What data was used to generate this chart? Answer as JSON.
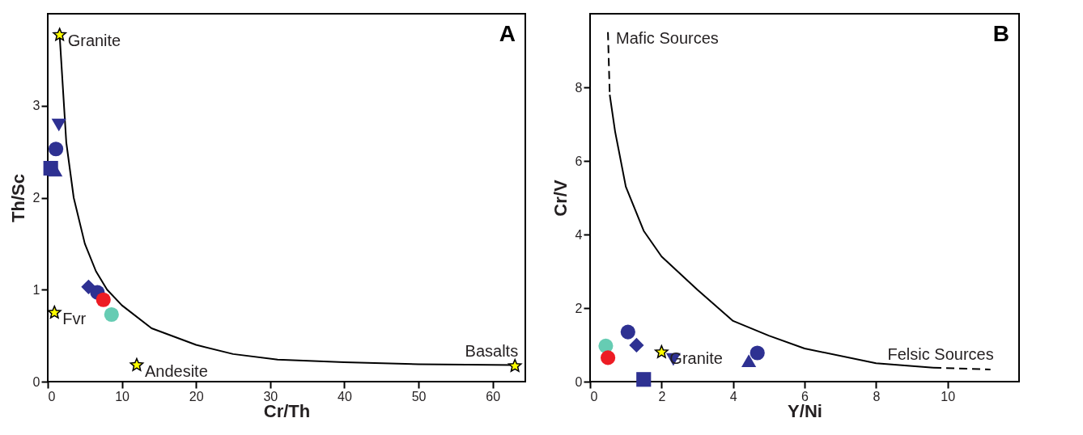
{
  "chart_data": [
    {
      "type": "scatter",
      "xlabel": "Cr/Th",
      "ylabel": "Th/Sc",
      "xlim": [
        0,
        64.4
      ],
      "ylim": [
        0,
        4
      ],
      "xticks": [
        0,
        10,
        20,
        30,
        40,
        50,
        60
      ],
      "yticks": [
        0,
        1,
        2,
        3
      ],
      "grid": false,
      "series": [
        {
          "type": "line",
          "line_style": "solid",
          "color": "#000000",
          "x": [
            1.6,
            2.5,
            3.5,
            5,
            6.5,
            8,
            10,
            14,
            20,
            25,
            31,
            40,
            50,
            63
          ],
          "values": [
            3.77,
            2.6,
            2.0,
            1.5,
            1.2,
            1.0,
            0.83,
            0.58,
            0.4,
            0.3,
            0.24,
            0.21,
            0.19,
            0.18
          ]
        },
        {
          "marker": "star",
          "color": "#ffff00",
          "x": [
            1.6,
            0.9,
            12,
            63
          ],
          "values": [
            3.77,
            0.75,
            0.18,
            0.17
          ]
        },
        {
          "marker": "triangle-down",
          "color": "#2e3192",
          "x": [
            1.5
          ],
          "values": [
            2.79
          ]
        },
        {
          "marker": "circle",
          "color": "#2e3192",
          "x": [
            1.1,
            6.7
          ],
          "values": [
            2.53,
            0.97
          ]
        },
        {
          "marker": "square",
          "color": "#2e3192",
          "x": [
            0.4
          ],
          "values": [
            2.32
          ]
        },
        {
          "marker": "triangle",
          "color": "#2e3192",
          "x": [
            1.0
          ],
          "values": [
            2.3
          ]
        },
        {
          "marker": "diamond",
          "color": "#2e3192",
          "x": [
            5.5
          ],
          "values": [
            1.03
          ]
        },
        {
          "marker": "circle",
          "color": "#ed1c24",
          "x": [
            7.5
          ],
          "values": [
            0.89
          ]
        },
        {
          "marker": "circle",
          "color": "#66ccb3",
          "x": [
            8.6
          ],
          "values": [
            0.73
          ]
        }
      ],
      "annotations": [
        "A",
        {
          "text": "Granite",
          "x": 1.6,
          "y": 3.77
        },
        {
          "text": "Fvr",
          "x": 0.9,
          "y": 0.75
        },
        {
          "text": "Andesite",
          "x": 12,
          "y": 0.18
        },
        {
          "text": "Basalts",
          "x": 63,
          "y": 0.17
        }
      ]
    },
    {
      "type": "scatter",
      "xlabel": "Y/Ni",
      "ylabel": "Cr/V",
      "xlim": [
        0,
        12
      ],
      "ylim": [
        0,
        10
      ],
      "xticks": [
        0,
        2,
        4,
        6,
        8,
        10
      ],
      "yticks": [
        0,
        2,
        4,
        6,
        8
      ],
      "grid": false,
      "series": [
        {
          "type": "line",
          "line_style": "solid",
          "color": "#000000",
          "x": [
            0.55,
            0.7,
            1,
            1.5,
            2,
            3,
            4,
            5,
            6,
            8,
            9.6
          ],
          "values": [
            7.8,
            6.8,
            5.3,
            4.1,
            3.4,
            2.5,
            1.65,
            1.25,
            0.9,
            0.5,
            0.38
          ]
        },
        {
          "type": "line",
          "line_style": "dashed",
          "color": "#000000",
          "x": [
            0.5,
            0.55
          ],
          "values": [
            9.5,
            7.8
          ]
        },
        {
          "type": "line",
          "line_style": "dashed",
          "color": "#000000",
          "x": [
            9.6,
            11.2
          ],
          "values": [
            0.38,
            0.33
          ]
        },
        {
          "marker": "circle",
          "color": "#66ccb3",
          "x": [
            0.44
          ],
          "values": [
            0.97
          ]
        },
        {
          "marker": "circle",
          "color": "#ed1c24",
          "x": [
            0.5
          ],
          "values": [
            0.65
          ]
        },
        {
          "marker": "circle",
          "color": "#2e3192",
          "x": [
            1.06,
            4.68
          ],
          "values": [
            1.35,
            0.78
          ]
        },
        {
          "marker": "diamond",
          "color": "#2e3192",
          "x": [
            1.3
          ],
          "values": [
            0.99
          ]
        },
        {
          "marker": "star",
          "color": "#ffff00",
          "x": [
            2.0
          ],
          "values": [
            0.8
          ]
        },
        {
          "marker": "triangle-down",
          "color": "#2e3192",
          "x": [
            2.33
          ],
          "values": [
            0.6
          ]
        },
        {
          "marker": "square",
          "color": "#2e3192",
          "x": [
            1.5
          ],
          "values": [
            0.06
          ]
        },
        {
          "marker": "triangle",
          "color": "#2e3192",
          "x": [
            4.44
          ],
          "values": [
            0.57
          ]
        }
      ],
      "annotations": [
        "B",
        {
          "text": "Mafic Sources",
          "x": 0.5,
          "y": 9.5
        },
        {
          "text": "Granite",
          "x": 2.0,
          "y": 0.8
        },
        {
          "text": "Felsic Sources",
          "x": 11.2,
          "y": 0.33
        }
      ]
    }
  ]
}
